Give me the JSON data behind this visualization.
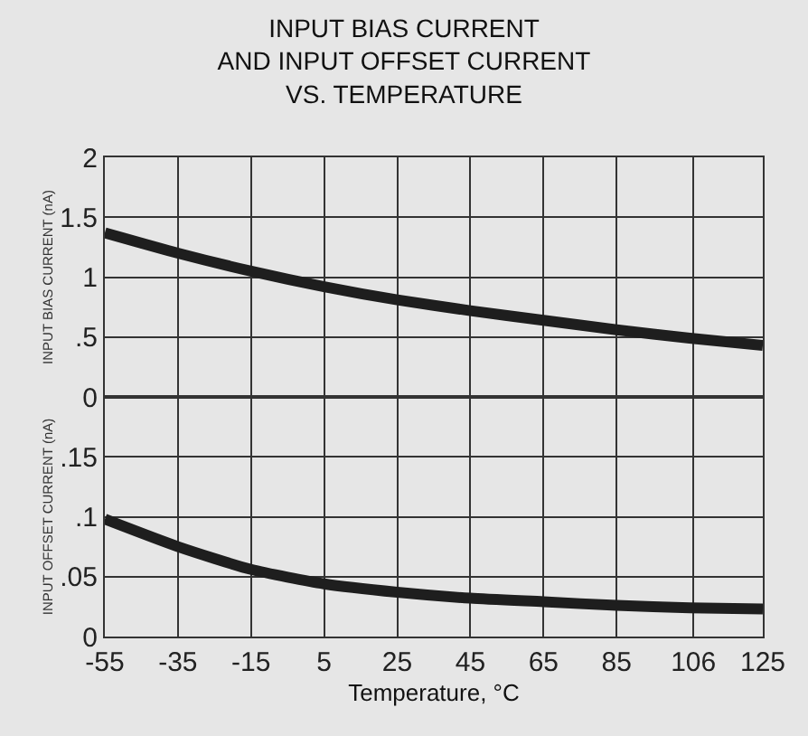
{
  "chart_data": [
    {
      "type": "line",
      "title": "INPUT BIAS CURRENT\nAND INPUT OFFSET CURRENT\nVS. TEMPERATURE",
      "ylabel": "INPUT BIAS CURRENT (nA)",
      "x": [
        -55,
        -35,
        -15,
        5,
        25,
        45,
        65,
        85,
        105,
        125
      ],
      "series": [
        {
          "color": "#1e1e1e",
          "values": [
            1.37,
            1.2,
            1.05,
            0.92,
            0.81,
            0.72,
            0.64,
            0.56,
            0.49,
            0.43
          ]
        }
      ],
      "xlim": [
        -55,
        125
      ],
      "xticks": [
        -55,
        -35,
        -15,
        5,
        25,
        45,
        65,
        85,
        106,
        125
      ],
      "ylim": [
        0,
        2
      ],
      "yticks": [
        0,
        {
          "value": 0.5,
          "label": ".5"
        },
        1,
        1.5,
        2
      ],
      "grid": true,
      "tick_labels": "y",
      "legend": false,
      "marker": "none",
      "line_style": "solid"
    },
    {
      "type": "line",
      "ylabel": "INPUT OFFSET CURRENT (nA)",
      "xlabel": "Temperature, °C",
      "x": [
        -55,
        -35,
        -15,
        5,
        25,
        45,
        65,
        85,
        105,
        125
      ],
      "series": [
        {
          "color": "#1e1e1e",
          "values": [
            0.098,
            0.075,
            0.056,
            0.044,
            0.037,
            0.032,
            0.029,
            0.026,
            0.024,
            0.023
          ]
        }
      ],
      "xlim": [
        -55,
        125
      ],
      "xticks": [
        -55,
        -35,
        -15,
        5,
        25,
        45,
        65,
        85,
        106,
        125
      ],
      "ylim": [
        0,
        0.2
      ],
      "yticks": [
        0,
        {
          "value": 0.05,
          "label": ".05"
        },
        {
          "value": 0.1,
          "label": ".1"
        },
        {
          "value": 0.15,
          "label": ".15"
        }
      ],
      "grid": true,
      "legend": false,
      "marker": "none",
      "line_style": "solid"
    }
  ]
}
